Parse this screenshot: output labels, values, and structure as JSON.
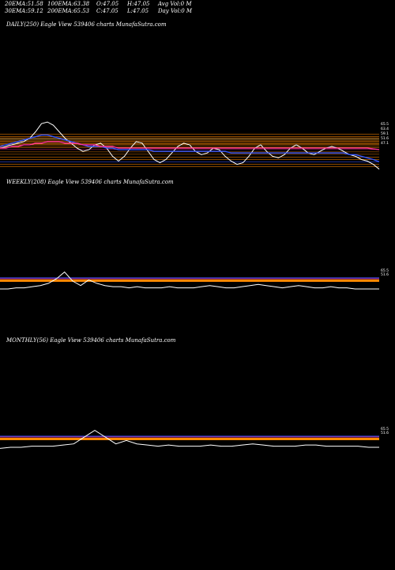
{
  "header": {
    "row1": [
      {
        "label": "20EMA:",
        "value": "51.58"
      },
      {
        "label": "100EMA:",
        "value": "63.38"
      },
      {
        "label": "O:",
        "value": "47.05"
      },
      {
        "label": "H:",
        "value": "47.05"
      },
      {
        "label": "Avg Vol:",
        "value": "0  M"
      }
    ],
    "row2": [
      {
        "label": "30EMA:",
        "value": "59.12"
      },
      {
        "label": "200EMA:",
        "value": "65.53"
      },
      {
        "label": "C:",
        "value": "47.05"
      },
      {
        "label": "L:",
        "value": "47.05"
      },
      {
        "label": "Day Vol:",
        "value": "0  M"
      }
    ]
  },
  "colors": {
    "background": "#000000",
    "price": "#ffffff",
    "ema20": "#3355ff",
    "ema30": "#ff3399",
    "ema100": "#ff8800",
    "ema200": "#ffcc66",
    "band": "#ff8800"
  },
  "chart_data": [
    {
      "type": "line",
      "panel": "daily",
      "title": "DAILY(250) Eagle  View  539406  charts MunafaSutra.com",
      "right_labels": [
        "65.5",
        "63.4",
        "59.1",
        "51.6",
        "47.1"
      ],
      "series": [
        {
          "role": "price",
          "values": [
            60,
            61,
            62,
            63,
            64,
            66,
            70,
            75,
            76,
            74,
            70,
            66,
            63,
            60,
            58,
            59,
            62,
            63,
            60,
            55,
            52,
            55,
            60,
            64,
            63,
            58,
            53,
            51,
            53,
            57,
            61,
            63,
            62,
            58,
            56,
            57,
            60,
            59,
            55,
            52,
            50,
            51,
            55,
            60,
            62,
            58,
            55,
            54,
            56,
            60,
            62,
            60,
            57,
            56,
            58,
            60,
            61,
            60,
            58,
            56,
            55,
            53,
            52,
            50,
            47.05
          ]
        },
        {
          "role": "ema20",
          "values": [
            61,
            62,
            63,
            64,
            65,
            66,
            67,
            68,
            68,
            67,
            66,
            65,
            64,
            63,
            62,
            61,
            61,
            61,
            60,
            60,
            59,
            59,
            59,
            59,
            59,
            59,
            58,
            58,
            58,
            58,
            58,
            58,
            58,
            58,
            58,
            58,
            58,
            58,
            58,
            57,
            57,
            57,
            57,
            57,
            57,
            57,
            57,
            57,
            57,
            57,
            57,
            57,
            57,
            57,
            57,
            57,
            57,
            57,
            57,
            56,
            56,
            55,
            54,
            53,
            51.58
          ]
        },
        {
          "role": "ema30",
          "values": [
            60,
            60,
            61,
            61,
            62,
            62,
            63,
            63,
            64,
            64,
            64,
            63,
            63,
            63,
            62,
            62,
            62,
            61,
            61,
            61,
            60,
            60,
            60,
            60,
            60,
            60,
            60,
            60,
            60,
            60,
            60,
            60,
            60,
            60,
            60,
            60,
            60,
            60,
            60,
            60,
            60,
            60,
            60,
            60,
            60,
            60,
            60,
            60,
            60,
            60,
            60,
            60,
            60,
            60,
            60,
            60,
            60,
            60,
            60,
            60,
            60,
            60,
            60,
            59.5,
            59.12
          ]
        }
      ],
      "levels": [
        65.53,
        63.38,
        59.12,
        51.58
      ]
    },
    {
      "type": "line",
      "panel": "weekly",
      "title": "WEEKLY(208) Eagle  View  539406  charts MunafaSutra.com",
      "right_labels": [
        "65.5",
        "51.6"
      ],
      "series": [
        {
          "role": "price",
          "values": [
            57,
            57,
            58,
            58,
            59,
            60,
            62,
            66,
            72,
            64,
            60,
            65,
            62,
            60,
            59,
            59,
            58,
            59,
            58,
            58,
            58,
            59,
            58,
            58,
            58,
            59,
            60,
            59,
            58,
            58,
            59,
            60,
            61,
            60,
            59,
            58,
            59,
            60,
            59,
            58,
            58,
            59,
            58,
            58,
            57,
            57,
            57,
            57
          ]
        }
      ]
    },
    {
      "type": "line",
      "panel": "monthly",
      "title": "MONTHLY(56) Eagle  View  539406  charts MunafaSutra.com",
      "right_labels": [
        "65.5",
        "51.6"
      ],
      "series": [
        {
          "role": "price",
          "values": [
            56,
            57,
            57,
            58,
            58,
            58,
            59,
            60,
            66,
            72,
            66,
            60,
            63,
            60,
            59,
            58,
            59,
            58,
            58,
            58,
            59,
            58,
            58,
            59,
            60,
            59,
            58,
            58,
            58,
            59,
            59,
            58,
            58,
            58,
            58,
            57,
            57
          ]
        }
      ]
    }
  ]
}
